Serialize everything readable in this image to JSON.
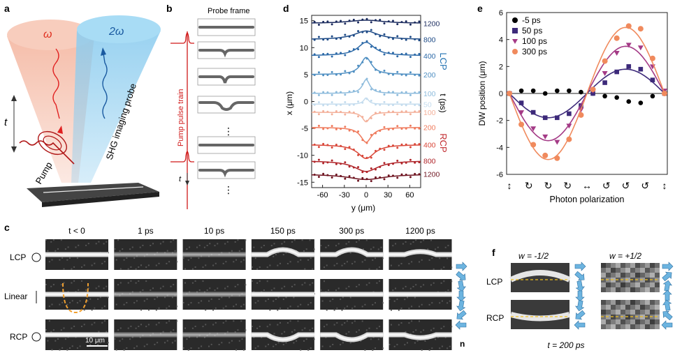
{
  "panel_letters": {
    "a": "a",
    "b": "b",
    "c": "c",
    "d": "d",
    "e": "e",
    "f": "f"
  },
  "panel_a": {
    "omega": "ω",
    "two_omega": "2ω",
    "t": "t",
    "pump": "Pump",
    "shg": "SHG imaging probe"
  },
  "panel_b": {
    "title": "Probe frame",
    "pulse_train": "Pump pulse train",
    "t": "t",
    "dots": "⋮",
    "dots2": "⋮"
  },
  "panel_c": {
    "columns": [
      "t < 0",
      "1 ps",
      "10 ps",
      "150 ps",
      "300 ps",
      "1200 ps"
    ],
    "rows": [
      "LCP",
      "Linear",
      "RCP"
    ],
    "scale": "10 μm",
    "n_label": "n"
  },
  "panel_f": {
    "w_neg": "w = -1/2",
    "w_pos": "w = +1/2",
    "rows": [
      "LCP",
      "RCP"
    ],
    "time": "t = 200 ps"
  },
  "chart_data": [
    {
      "type": "line",
      "panel": "d",
      "xlabel": "y (μm)",
      "ylabel": "x (μm)",
      "xlim": [
        -75,
        75
      ],
      "ylim": [
        -16,
        16
      ],
      "xticks": [
        -60,
        -30,
        0,
        30,
        60
      ],
      "yticks": [
        -15,
        -10,
        -5,
        0,
        5,
        10,
        15
      ],
      "time_label": "t (ps)",
      "group_labels": {
        "top": "LCP",
        "bottom": "RCP"
      },
      "series": [
        {
          "name": "1200",
          "offset": 14.5,
          "amp": 0.6,
          "sign": 1,
          "width": 30,
          "color": "#1b2b5e"
        },
        {
          "name": "800",
          "offset": 11.5,
          "amp": 1.6,
          "sign": 1,
          "width": 20,
          "color": "#1d4a86"
        },
        {
          "name": "400",
          "offset": 8.5,
          "amp": 2.5,
          "sign": 1,
          "width": 14,
          "color": "#2d6aa8"
        },
        {
          "name": "200",
          "offset": 5,
          "amp": 3.2,
          "sign": 1,
          "width": 9,
          "color": "#4f8fc2"
        },
        {
          "name": "100",
          "offset": 1.5,
          "amp": 2.6,
          "sign": 1,
          "width": 6,
          "color": "#8dbbdc"
        },
        {
          "name": "50",
          "offset": -0.5,
          "amp": 1.2,
          "sign": 1,
          "width": 4,
          "color": "#c4dcee"
        },
        {
          "name": "100",
          "offset": -2,
          "amp": 1.8,
          "sign": -1,
          "width": 6,
          "color": "#f3b09a"
        },
        {
          "name": "200",
          "offset": -4.8,
          "amp": 2.8,
          "sign": -1,
          "width": 9,
          "color": "#ef7a5c"
        },
        {
          "name": "400",
          "offset": -8,
          "amp": 2.6,
          "sign": -1,
          "width": 14,
          "color": "#d9483a"
        },
        {
          "name": "800",
          "offset": -11,
          "amp": 2,
          "sign": -1,
          "width": 20,
          "color": "#b0252a"
        },
        {
          "name": "1200",
          "offset": -13.5,
          "amp": 1,
          "sign": -1,
          "width": 30,
          "color": "#6e1420"
        }
      ]
    },
    {
      "type": "scatter",
      "panel": "e",
      "xlabel": "Photon polarization",
      "ylabel": "DW position (μm)",
      "ylim": [
        -6,
        6
      ],
      "yticks": [
        -6,
        -4,
        -2,
        0,
        2,
        4,
        6
      ],
      "legend_position": "top-left",
      "series": [
        {
          "name": "-5 ps",
          "amp": 0.2,
          "color": "#000000",
          "marker": "circle",
          "values": [
            0,
            0.2,
            0.2,
            0,
            0.2,
            0.2,
            0.1,
            0,
            -0.2,
            -0.3,
            -0.6,
            -0.7,
            -0.2,
            0
          ]
        },
        {
          "name": "50 ps",
          "amp": 1.8,
          "color": "#3d2a7a",
          "marker": "square",
          "values": [
            0,
            -0.7,
            -1.4,
            -1.8,
            -1.8,
            -1.5,
            -0.9,
            0,
            0.8,
            1.6,
            2,
            1.8,
            1,
            0
          ]
        },
        {
          "name": "100 ps",
          "amp": 3.5,
          "color": "#a43a86",
          "marker": "triangle",
          "values": [
            0,
            -1.4,
            -2.6,
            -3.2,
            -3.6,
            -2.4,
            -1.2,
            0.2,
            1.5,
            3,
            3.6,
            3.4,
            2,
            0.2
          ]
        },
        {
          "name": "300 ps",
          "amp": 4.9,
          "color": "#f08a5d",
          "marker": "circle",
          "values": [
            0,
            -2.3,
            -3.8,
            -4.6,
            -4.8,
            -3.4,
            -1.6,
            0.3,
            2.4,
            4.1,
            5,
            4.8,
            2.6,
            0
          ]
        }
      ],
      "polarization_symbols": [
        "↕",
        "↻",
        "↻",
        "↻",
        "↔",
        "↺",
        "↺",
        "↺",
        "↕"
      ]
    }
  ]
}
